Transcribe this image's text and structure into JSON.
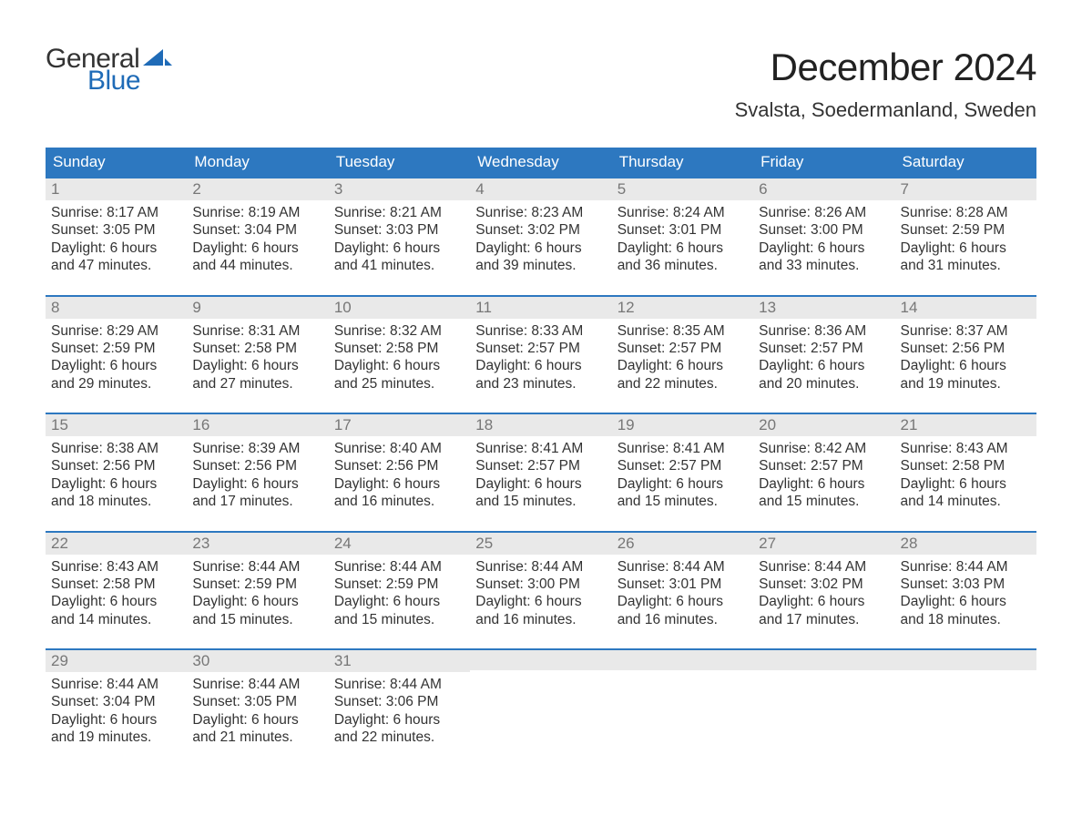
{
  "logo": {
    "text1": "General",
    "text2": "Blue",
    "color_text1": "#333333",
    "color_text2": "#1f6bb7",
    "sail_color": "#1f6bb7"
  },
  "title": "December 2024",
  "location": "Svalsta, Soedermanland, Sweden",
  "colors": {
    "header_bg": "#2d78c0",
    "header_text": "#ffffff",
    "daynum_bg": "#e9e9e9",
    "daynum_text": "#777777",
    "body_text": "#333333",
    "week_border": "#2d78c0",
    "page_bg": "#ffffff"
  },
  "fonts": {
    "title_size_pt": 32,
    "location_size_pt": 17,
    "dow_size_pt": 13,
    "daynum_size_pt": 13,
    "body_size_pt": 12
  },
  "days_of_week": [
    "Sunday",
    "Monday",
    "Tuesday",
    "Wednesday",
    "Thursday",
    "Friday",
    "Saturday"
  ],
  "weeks": [
    [
      {
        "n": "1",
        "sunrise": "Sunrise: 8:17 AM",
        "sunset": "Sunset: 3:05 PM",
        "d1": "Daylight: 6 hours",
        "d2": "and 47 minutes."
      },
      {
        "n": "2",
        "sunrise": "Sunrise: 8:19 AM",
        "sunset": "Sunset: 3:04 PM",
        "d1": "Daylight: 6 hours",
        "d2": "and 44 minutes."
      },
      {
        "n": "3",
        "sunrise": "Sunrise: 8:21 AM",
        "sunset": "Sunset: 3:03 PM",
        "d1": "Daylight: 6 hours",
        "d2": "and 41 minutes."
      },
      {
        "n": "4",
        "sunrise": "Sunrise: 8:23 AM",
        "sunset": "Sunset: 3:02 PM",
        "d1": "Daylight: 6 hours",
        "d2": "and 39 minutes."
      },
      {
        "n": "5",
        "sunrise": "Sunrise: 8:24 AM",
        "sunset": "Sunset: 3:01 PM",
        "d1": "Daylight: 6 hours",
        "d2": "and 36 minutes."
      },
      {
        "n": "6",
        "sunrise": "Sunrise: 8:26 AM",
        "sunset": "Sunset: 3:00 PM",
        "d1": "Daylight: 6 hours",
        "d2": "and 33 minutes."
      },
      {
        "n": "7",
        "sunrise": "Sunrise: 8:28 AM",
        "sunset": "Sunset: 2:59 PM",
        "d1": "Daylight: 6 hours",
        "d2": "and 31 minutes."
      }
    ],
    [
      {
        "n": "8",
        "sunrise": "Sunrise: 8:29 AM",
        "sunset": "Sunset: 2:59 PM",
        "d1": "Daylight: 6 hours",
        "d2": "and 29 minutes."
      },
      {
        "n": "9",
        "sunrise": "Sunrise: 8:31 AM",
        "sunset": "Sunset: 2:58 PM",
        "d1": "Daylight: 6 hours",
        "d2": "and 27 minutes."
      },
      {
        "n": "10",
        "sunrise": "Sunrise: 8:32 AM",
        "sunset": "Sunset: 2:58 PM",
        "d1": "Daylight: 6 hours",
        "d2": "and 25 minutes."
      },
      {
        "n": "11",
        "sunrise": "Sunrise: 8:33 AM",
        "sunset": "Sunset: 2:57 PM",
        "d1": "Daylight: 6 hours",
        "d2": "and 23 minutes."
      },
      {
        "n": "12",
        "sunrise": "Sunrise: 8:35 AM",
        "sunset": "Sunset: 2:57 PM",
        "d1": "Daylight: 6 hours",
        "d2": "and 22 minutes."
      },
      {
        "n": "13",
        "sunrise": "Sunrise: 8:36 AM",
        "sunset": "Sunset: 2:57 PM",
        "d1": "Daylight: 6 hours",
        "d2": "and 20 minutes."
      },
      {
        "n": "14",
        "sunrise": "Sunrise: 8:37 AM",
        "sunset": "Sunset: 2:56 PM",
        "d1": "Daylight: 6 hours",
        "d2": "and 19 minutes."
      }
    ],
    [
      {
        "n": "15",
        "sunrise": "Sunrise: 8:38 AM",
        "sunset": "Sunset: 2:56 PM",
        "d1": "Daylight: 6 hours",
        "d2": "and 18 minutes."
      },
      {
        "n": "16",
        "sunrise": "Sunrise: 8:39 AM",
        "sunset": "Sunset: 2:56 PM",
        "d1": "Daylight: 6 hours",
        "d2": "and 17 minutes."
      },
      {
        "n": "17",
        "sunrise": "Sunrise: 8:40 AM",
        "sunset": "Sunset: 2:56 PM",
        "d1": "Daylight: 6 hours",
        "d2": "and 16 minutes."
      },
      {
        "n": "18",
        "sunrise": "Sunrise: 8:41 AM",
        "sunset": "Sunset: 2:57 PM",
        "d1": "Daylight: 6 hours",
        "d2": "and 15 minutes."
      },
      {
        "n": "19",
        "sunrise": "Sunrise: 8:41 AM",
        "sunset": "Sunset: 2:57 PM",
        "d1": "Daylight: 6 hours",
        "d2": "and 15 minutes."
      },
      {
        "n": "20",
        "sunrise": "Sunrise: 8:42 AM",
        "sunset": "Sunset: 2:57 PM",
        "d1": "Daylight: 6 hours",
        "d2": "and 15 minutes."
      },
      {
        "n": "21",
        "sunrise": "Sunrise: 8:43 AM",
        "sunset": "Sunset: 2:58 PM",
        "d1": "Daylight: 6 hours",
        "d2": "and 14 minutes."
      }
    ],
    [
      {
        "n": "22",
        "sunrise": "Sunrise: 8:43 AM",
        "sunset": "Sunset: 2:58 PM",
        "d1": "Daylight: 6 hours",
        "d2": "and 14 minutes."
      },
      {
        "n": "23",
        "sunrise": "Sunrise: 8:44 AM",
        "sunset": "Sunset: 2:59 PM",
        "d1": "Daylight: 6 hours",
        "d2": "and 15 minutes."
      },
      {
        "n": "24",
        "sunrise": "Sunrise: 8:44 AM",
        "sunset": "Sunset: 2:59 PM",
        "d1": "Daylight: 6 hours",
        "d2": "and 15 minutes."
      },
      {
        "n": "25",
        "sunrise": "Sunrise: 8:44 AM",
        "sunset": "Sunset: 3:00 PM",
        "d1": "Daylight: 6 hours",
        "d2": "and 16 minutes."
      },
      {
        "n": "26",
        "sunrise": "Sunrise: 8:44 AM",
        "sunset": "Sunset: 3:01 PM",
        "d1": "Daylight: 6 hours",
        "d2": "and 16 minutes."
      },
      {
        "n": "27",
        "sunrise": "Sunrise: 8:44 AM",
        "sunset": "Sunset: 3:02 PM",
        "d1": "Daylight: 6 hours",
        "d2": "and 17 minutes."
      },
      {
        "n": "28",
        "sunrise": "Sunrise: 8:44 AM",
        "sunset": "Sunset: 3:03 PM",
        "d1": "Daylight: 6 hours",
        "d2": "and 18 minutes."
      }
    ],
    [
      {
        "n": "29",
        "sunrise": "Sunrise: 8:44 AM",
        "sunset": "Sunset: 3:04 PM",
        "d1": "Daylight: 6 hours",
        "d2": "and 19 minutes."
      },
      {
        "n": "30",
        "sunrise": "Sunrise: 8:44 AM",
        "sunset": "Sunset: 3:05 PM",
        "d1": "Daylight: 6 hours",
        "d2": "and 21 minutes."
      },
      {
        "n": "31",
        "sunrise": "Sunrise: 8:44 AM",
        "sunset": "Sunset: 3:06 PM",
        "d1": "Daylight: 6 hours",
        "d2": "and 22 minutes."
      },
      null,
      null,
      null,
      null
    ]
  ]
}
